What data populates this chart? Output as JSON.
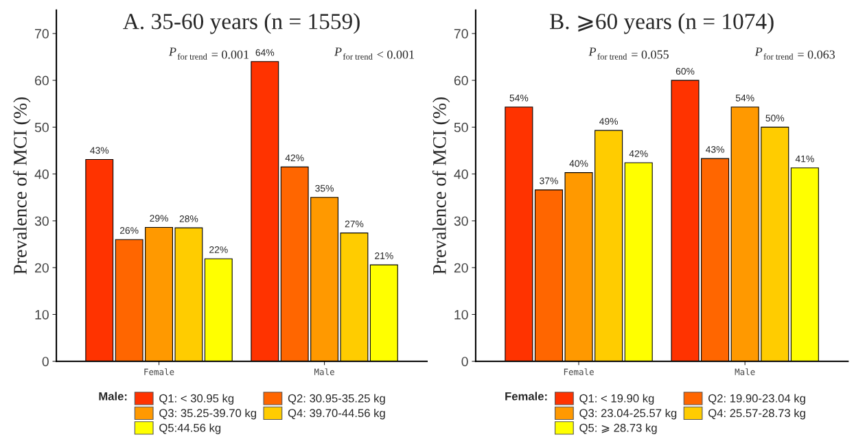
{
  "chart_data": [
    {
      "type": "bar",
      "title": "A. 35-60 years (n = 1559)",
      "ylabel": "Prevalence of MCI (%)",
      "categories": [
        "Female",
        "Male"
      ],
      "series": [
        {
          "name": "Q1: < 30.95 kg",
          "color": "#ff3300",
          "values": [
            43.1,
            64.0
          ],
          "value_labels": [
            "43%",
            "64%"
          ]
        },
        {
          "name": "Q2: 30.95-35.25 kg",
          "color": "#ff6600",
          "values": [
            26.0,
            41.5
          ],
          "value_labels": [
            "26%",
            "42%"
          ]
        },
        {
          "name": "Q3: 35.25-39.70 kg",
          "color": "#ff9900",
          "values": [
            28.6,
            35.0
          ],
          "value_labels": [
            "29%",
            "35%"
          ]
        },
        {
          "name": "Q4: 39.70-44.56 kg",
          "color": "#ffcc00",
          "values": [
            28.5,
            27.4
          ],
          "value_labels": [
            "28%",
            "27%"
          ]
        },
        {
          "name": "Q5:44.56 kg",
          "color": "#ffff00",
          "values": [
            21.9,
            20.6
          ],
          "value_labels": [
            "22%",
            "21%"
          ]
        }
      ],
      "legend_title": "Male:",
      "legend": "bottom",
      "annotations": [
        "P$_{for trend}$ = 0.001",
        "P$_{for trend}$ < 0.001"
      ],
      "ylim": [
        0,
        75
      ],
      "yticks": [
        0,
        10,
        20,
        30,
        40,
        50,
        60,
        70
      ],
      "grid": false
    },
    {
      "type": "bar",
      "title": "B. ⩾60 years (n = 1074)",
      "ylabel": "Prevalence of MCI (%)",
      "categories": [
        "Female",
        "Male"
      ],
      "series": [
        {
          "name": "Q1: < 19.90 kg",
          "color": "#ff3300",
          "values": [
            54.3,
            60.0
          ],
          "value_labels": [
            "54%",
            "60%"
          ]
        },
        {
          "name": "Q2: 19.90-23.04 kg",
          "color": "#ff6600",
          "values": [
            36.6,
            43.3
          ],
          "value_labels": [
            "37%",
            "43%"
          ]
        },
        {
          "name": "Q3: 23.04-25.57 kg",
          "color": "#ff9900",
          "values": [
            40.3,
            54.3
          ],
          "value_labels": [
            "40%",
            "54%"
          ]
        },
        {
          "name": "Q4: 25.57-28.73 kg",
          "color": "#ffcc00",
          "values": [
            49.3,
            50.0
          ],
          "value_labels": [
            "49%",
            "50%"
          ]
        },
        {
          "name": "Q5: ⩾ 28.73 kg",
          "color": "#ffff00",
          "values": [
            42.4,
            41.3
          ],
          "value_labels": [
            "42%",
            "41%"
          ]
        }
      ],
      "legend_title": "Female:",
      "legend": "bottom",
      "annotations": [
        "P$_{for trend}$ = 0.055",
        "P$_{for trend}$ = 0.063"
      ],
      "ylim": [
        0,
        75
      ],
      "yticks": [
        0,
        10,
        20,
        30,
        40,
        50,
        60,
        70
      ],
      "grid": false
    }
  ]
}
